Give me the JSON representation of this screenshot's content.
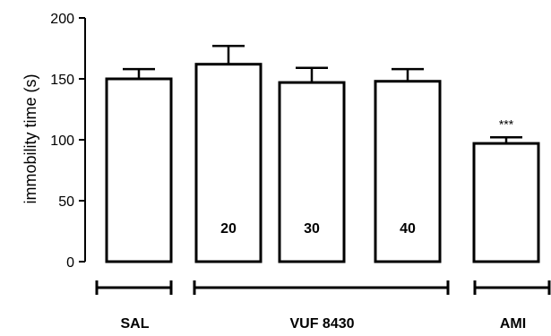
{
  "chart_data": {
    "type": "bar",
    "ylabel": "immobility time (s)",
    "ylim": [
      0,
      200
    ],
    "yticks": [
      0,
      50,
      100,
      150,
      200
    ],
    "categories": [
      "SAL",
      "20",
      "30",
      "40",
      "AMI"
    ],
    "values": [
      150,
      162,
      147,
      148,
      97
    ],
    "errors": [
      8,
      15,
      12,
      10,
      5
    ],
    "bar_labels": [
      "",
      "20",
      "30",
      "40",
      ""
    ],
    "annotations": [
      "",
      "",
      "",
      "",
      "***"
    ],
    "groups": [
      {
        "label": "SAL",
        "start": 0,
        "end": 0
      },
      {
        "label": "VUF 8430",
        "start": 1,
        "end": 3
      },
      {
        "label": "AMI",
        "start": 4,
        "end": 4
      }
    ]
  }
}
